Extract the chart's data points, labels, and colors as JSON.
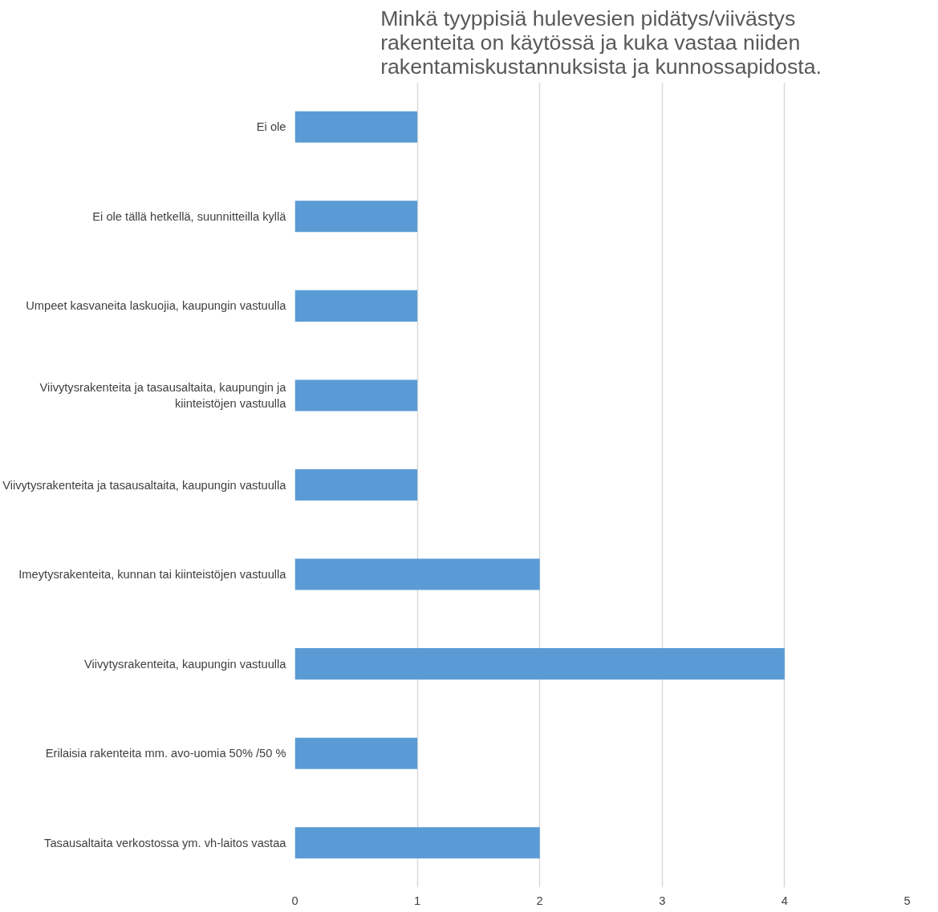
{
  "chart_data": {
    "type": "bar",
    "orientation": "horizontal",
    "title": "Minkä tyyppisiä hulevesien pidätys/viivästys rakenteita on käytössä ja kuka vastaa niiden rakentamiskustannuksista ja kunnossapidosta.",
    "categories": [
      "Ei ole",
      "Ei ole tällä hetkellä, suunnitteilla kyllä",
      "Umpeet kasvaneita laskuojia, kaupungin vastuulla",
      "Viivytysrakenteita ja tasausaltaita, kaupungin ja kiinteistöjen vastuulla",
      "Viivytysrakenteita ja tasausaltaita, kaupungin vastuulla",
      "Imeytysrakenteita, kunnan tai kiinteistöjen vastuulla",
      "Viivytysrakenteita, kaupungin vastuulla",
      "Erilaisia rakenteita mm. avo-uomia 50% /50 %",
      "Tasausaltaita verkostossa ym. vh-laitos vastaa"
    ],
    "values": [
      1,
      1,
      1,
      1,
      1,
      2,
      4,
      1,
      2
    ],
    "color": "#5b9bd5",
    "xlim": [
      0,
      5
    ],
    "xticks": [
      0,
      1,
      2,
      3,
      4,
      5
    ],
    "grid": "x"
  }
}
